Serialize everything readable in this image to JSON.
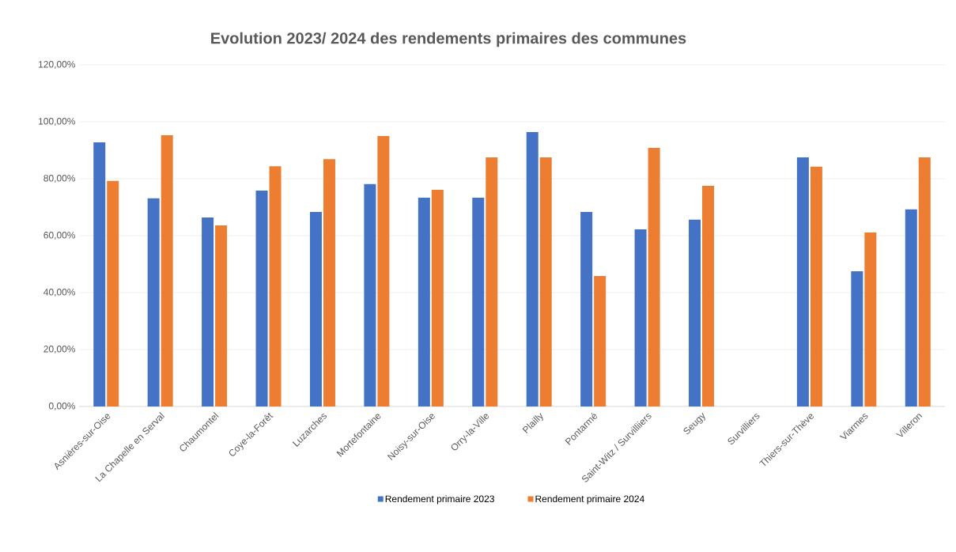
{
  "chart_data": {
    "type": "bar",
    "title": "Evolution 2023/ 2024 des rendements primaires des communes",
    "categories": [
      "Asnières-sur-Oise",
      "La Chapelle en Serval",
      "Chaumontel",
      "Coye-la-Forêt",
      "Luzarches",
      "Mortefontaine",
      "Noisy-sur-Oise",
      "Orry-la-Ville",
      "Plailly",
      "Pontarmé",
      "Saint-Witz / Survilliiers",
      "Seugy",
      "Survilliers",
      "Thiers-sur-Thève",
      "Viarmes",
      "Villeron"
    ],
    "series": [
      {
        "name": "Rendement primaire 2023",
        "color": "#4472c4",
        "values": [
          92.8,
          73.1,
          66.4,
          75.8,
          68.3,
          78.1,
          73.3,
          73.3,
          96.4,
          68.3,
          62.2,
          65.6,
          null,
          87.5,
          47.5,
          69.2
        ]
      },
      {
        "name": "Rendement primaire 2024",
        "color": "#ed7d31",
        "values": [
          79.2,
          95.3,
          63.6,
          84.4,
          86.9,
          95.0,
          76.1,
          87.5,
          87.5,
          45.8,
          90.8,
          77.5,
          null,
          84.2,
          61.1,
          87.5
        ]
      }
    ],
    "ylim": [
      0,
      120
    ],
    "yticks": [
      {
        "value": 0,
        "label": "0,00%"
      },
      {
        "value": 20,
        "label": "20,00%"
      },
      {
        "value": 40,
        "label": "40,00%"
      },
      {
        "value": 60,
        "label": "60,00%"
      },
      {
        "value": 80,
        "label": "80,00%"
      },
      {
        "value": 100,
        "label": "100,00%"
      },
      {
        "value": 120,
        "label": "120,00%"
      }
    ],
    "grid": "y",
    "legend": "bottom"
  }
}
